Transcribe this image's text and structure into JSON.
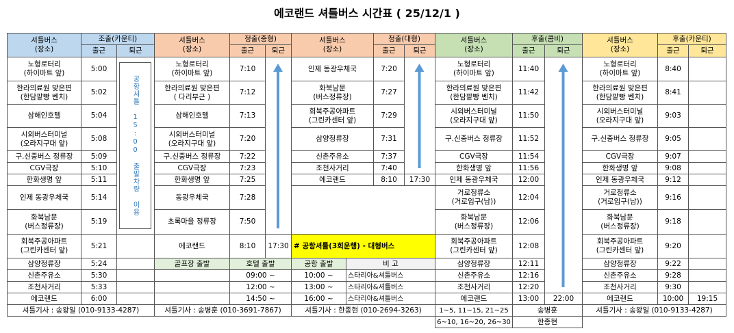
{
  "title": "에코랜드 셔틀버스 시간표 ( 25/12/1 )",
  "blocks": [
    {
      "header": {
        "stop": "셔틀버스\n(장소)",
        "shift": "조출(카운티)",
        "start": "출근",
        "end": "퇴근"
      },
      "rows": [
        {
          "stop": "노형로터리\n(하이마트 앞)",
          "start": "5:00"
        },
        {
          "stop": "한라의료원 맞은편\n(한담팥빵 벤치)",
          "start": "5:02"
        },
        {
          "stop": "삼해인호텔",
          "start": "5:04"
        },
        {
          "stop": "시외버스터미널\n(오라지구대 앞)",
          "start": "5:08"
        },
        {
          "stop": "구.신중버스 정류장",
          "start": "5:09"
        },
        {
          "stop": "CGV극장",
          "start": "5:10"
        },
        {
          "stop": "한화생명 앞",
          "start": "5:11"
        },
        {
          "stop": "인제 동광우체국",
          "start": "5:14"
        },
        {
          "stop": "화북남문\n(버스정류장)",
          "start": "5:19"
        },
        {
          "stop": "회북주공아파트\n(그린카센터 앞)",
          "start": "5:21"
        },
        {
          "stop": "삼양정류장",
          "start": "5:24"
        },
        {
          "stop": "신촌주유소",
          "start": "5:30"
        },
        {
          "stop": "조천사거리",
          "start": "5:33"
        },
        {
          "stop": "에코랜드",
          "start": "6:00"
        }
      ],
      "note": "공항셔틀 15:00 출발차량 이용",
      "footer": "셔틀기사 : 송왕일 (010-9133-4287)"
    },
    {
      "header": {
        "stop": "셔틀버스\n(장소)",
        "shift": "정출(중형)",
        "start": "출근",
        "end": "퇴근"
      },
      "rows": [
        {
          "stop": "노형로터리\n(하이마트 앞)",
          "start": "7:10"
        },
        {
          "stop": "한라의료원 맞은편\n( 다리부근 )",
          "start": "7:12"
        },
        {
          "stop": "삼해인호텔",
          "start": "7:13"
        },
        {
          "stop": "시외버스터미널\n(오라지구대 앞)",
          "start": "7:20"
        },
        {
          "stop": "구.신중버스 정류장",
          "start": "7:22"
        },
        {
          "stop": "CGV극장",
          "start": "7:23"
        },
        {
          "stop": "한화생명 앞",
          "start": "7:25"
        },
        {
          "stop": "동광우체국",
          "start": "7:28"
        },
        {
          "stop": "초록마을 정류장",
          "start": "7:50"
        },
        {
          "stop": "에코랜드",
          "start": "8:10",
          "end": "17:30"
        }
      ],
      "sub_header": {
        "start": "골프장 출발",
        "remark": "호텔 출발"
      },
      "sub_rows": [
        {
          "time": "09:00 ~"
        },
        {
          "time": "12:00 ~"
        },
        {
          "time": "14:50 ~"
        }
      ],
      "footer": "셔틀기사 : 송병훈 (010-3691-7867)"
    },
    {
      "header": {
        "stop": "셔틀버스\n(장소)",
        "shift": "정출(대형)",
        "start": "출근",
        "end": "퇴근"
      },
      "rows": [
        {
          "stop": "인제 동광우체국",
          "start": "7:20"
        },
        {
          "stop": "화북남문\n(버스정류장)",
          "start": "7:27"
        },
        {
          "stop": "회북주공아파트\n(그린카센터 앞)",
          "start": "7:29"
        },
        {
          "stop": "삼양정류장",
          "start": "7:31"
        },
        {
          "stop": "신촌주유소",
          "start": "7:37"
        },
        {
          "stop": "조천사거리",
          "start": "7:40"
        },
        {
          "stop": "에코랜드",
          "start": "8:10",
          "end": "17:30"
        }
      ],
      "notice": "# 공항셔틀(3회운행) - 대형버스",
      "sub_header": {
        "start": "공항 출발",
        "remark": "비   고"
      },
      "sub_rows": [
        {
          "time": "10:00 ~",
          "remark": "스타리아&셔틀버스"
        },
        {
          "time": "13:00 ~",
          "remark": "스타리아&셔틀버스"
        },
        {
          "time": "16:00 ~",
          "remark": "스타리아&셔틀버스"
        }
      ],
      "footer": "셔틀기사 : 한종현 (010-2694-3263)"
    },
    {
      "header": {
        "stop": "셔틀버스\n(장소)",
        "shift": "후출(콤비)",
        "start": "출근",
        "end": "퇴근"
      },
      "rows": [
        {
          "stop": "노형로터리\n(하이마트 앞)",
          "start": "11:40"
        },
        {
          "stop": "한라의료원 맞은편\n(한담팥빵 벤치)",
          "start": "11:42"
        },
        {
          "stop": "시외버스터미널\n(오라지구대 앞)",
          "start": "11:50"
        },
        {
          "stop": "구.신중버스 정류장",
          "start": "11:52"
        },
        {
          "stop": "CGV극장",
          "start": "11:54"
        },
        {
          "stop": "한화생명 앞",
          "start": "11:56"
        },
        {
          "stop": "인제 동광우체국",
          "start": "12:00"
        },
        {
          "stop": "거로정류소\n(거로입구(남))",
          "start": "12:04"
        },
        {
          "stop": "화북남문\n(버스정류장)",
          "start": "12:06"
        },
        {
          "stop": "회북주공아파트\n(그린카센터 앞)",
          "start": "12:08"
        },
        {
          "stop": "삼양정류장",
          "start": "12:11"
        },
        {
          "stop": "신촌주유소",
          "start": "12:16"
        },
        {
          "stop": "조천사거리",
          "start": "12:20"
        },
        {
          "stop": "에코랜드",
          "start": "13:00",
          "end": "22:00"
        }
      ],
      "drivers": [
        {
          "days": "1~5, 11~15, 21~25",
          "name": "송병훈"
        },
        {
          "days": "6~10, 16~20, 26~30",
          "name": "한종현"
        }
      ]
    },
    {
      "header": {
        "stop": "셔틀버스\n(장소)",
        "shift": "후출(카운티)",
        "start": "출근",
        "end": "퇴근"
      },
      "rows": [
        {
          "stop": "노형로터리\n(하이마트 앞)",
          "start": "8:40"
        },
        {
          "stop": "한라의료원 맞은편\n(한담팥빵 벤치)",
          "start": "8:41"
        },
        {
          "stop": "시외버스터미널\n(오라지구대 앞)",
          "start": "9:03"
        },
        {
          "stop": "구.신중버스 정류장",
          "start": "9:05"
        },
        {
          "stop": "CGV극장",
          "start": "9:07"
        },
        {
          "stop": "한화생명 앞",
          "start": "9:08"
        },
        {
          "stop": "인제 동광우체국",
          "start": "9:12"
        },
        {
          "stop": "거로정류소\n(거로입구(남))",
          "start": "9:16"
        },
        {
          "stop": "화북남문\n(버스정류장)",
          "start": "9:18"
        },
        {
          "stop": "회북주공아파트\n(그린카센터 앞)",
          "start": "9:20"
        },
        {
          "stop": "삼양정류장",
          "start": "9:22"
        },
        {
          "stop": "신촌주유소",
          "start": "9:28"
        },
        {
          "stop": "조천사거리",
          "start": "9:30"
        },
        {
          "stop": "에코랜드",
          "start": "10:00",
          "end": "19:15"
        }
      ],
      "footer": "셔틀기사 : 송왕일 (010-9133-4287)"
    }
  ]
}
